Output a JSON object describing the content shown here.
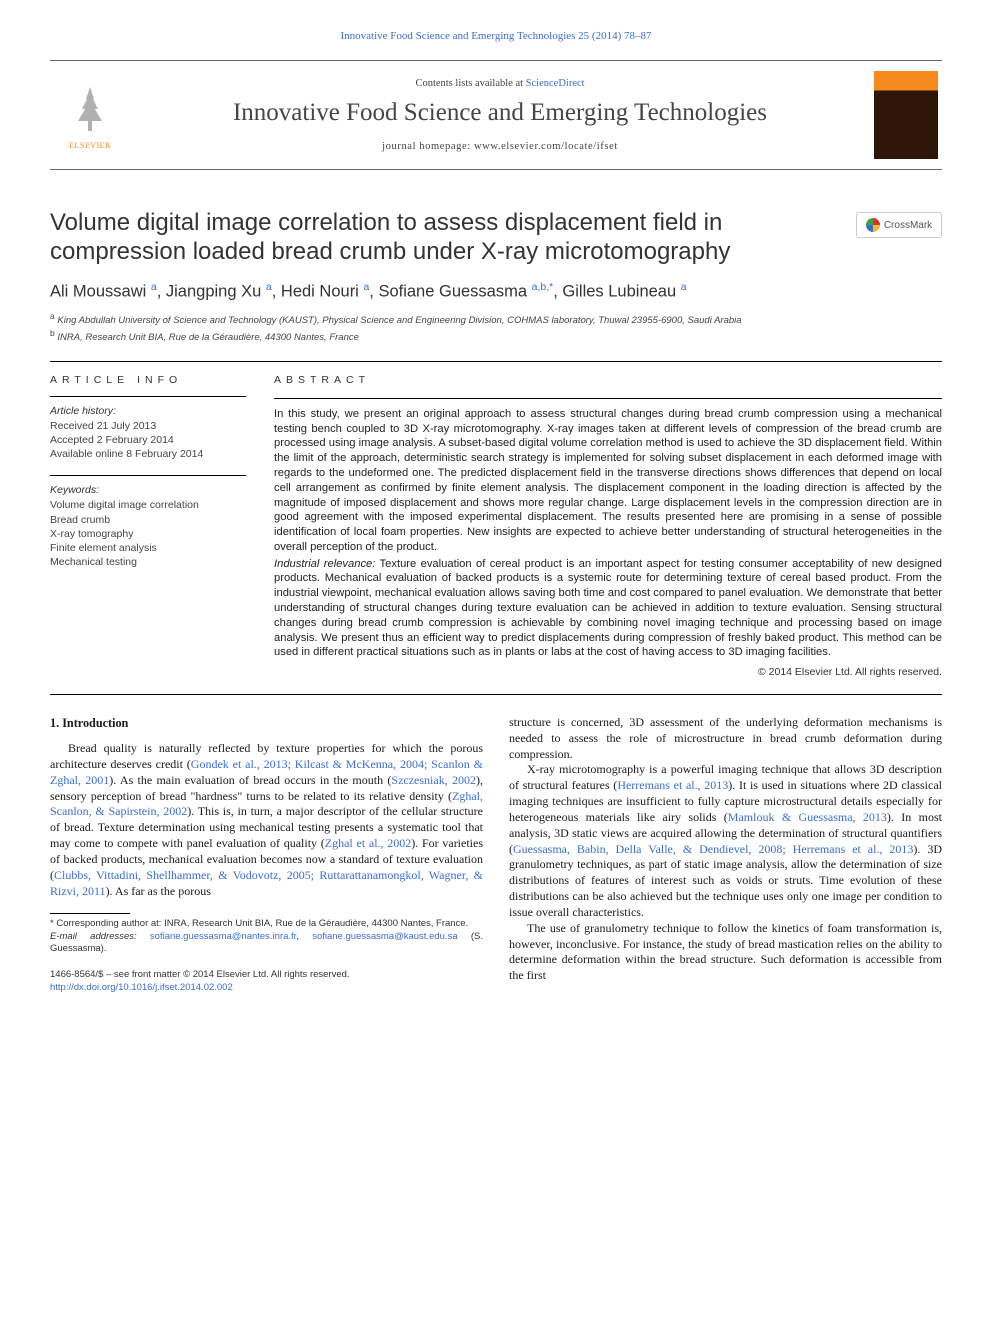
{
  "top_link": {
    "journal_full": "Innovative Food Science and Emerging Technologies 25 (2014) 78–87"
  },
  "header": {
    "contents_prefix": "Contents lists available at ",
    "contents_link": "ScienceDirect",
    "journal_name": "Innovative Food Science and Emerging Technologies",
    "homepage_label": "journal homepage: ",
    "homepage_url": "www.elsevier.com/locate/ifset",
    "elsevier_label": "ELSEVIER"
  },
  "crossmark_label": "CrossMark",
  "title": "Volume digital image correlation to assess displacement field in compression loaded bread crumb under X-ray microtomography",
  "authors_html": "Ali Moussawi <sup>a</sup>, Jiangping Xu <sup>a</sup>, Hedi Nouri <sup>a</sup>, Sofiane Guessasma <sup>a,b,*</sup>, Gilles Lubineau <sup>a</sup>",
  "affiliations": {
    "a": "King Abdullah University of Science and Technology (KAUST), Physical Science and Engineering Division, COHMAS laboratory, Thuwal 23955-6900, Saudi Arabia",
    "b": "INRA, Research Unit BIA, Rue de la Géraudière, 44300 Nantes, France"
  },
  "article_info": {
    "heading": "article info",
    "history_label": "Article history:",
    "received": "Received 21 July 2013",
    "accepted": "Accepted 2 February 2014",
    "online": "Available online 8 February 2014",
    "keywords_label": "Keywords:",
    "keywords": [
      "Volume digital image correlation",
      "Bread crumb",
      "X-ray tomography",
      "Finite element analysis",
      "Mechanical testing"
    ]
  },
  "abstract": {
    "heading": "abstract",
    "p1": "In this study, we present an original approach to assess structural changes during bread crumb compression using a mechanical testing bench coupled to 3D X-ray microtomography. X-ray images taken at different levels of compression of the bread crumb are processed using image analysis. A subset-based digital volume correlation method is used to achieve the 3D displacement field. Within the limit of the approach, deterministic search strategy is implemented for solving subset displacement in each deformed image with regards to the undeformed one. The predicted displacement field in the transverse directions shows differences that depend on local cell arrangement as confirmed by finite element analysis. The displacement component in the loading direction is affected by the magnitude of imposed displacement and shows more regular change. Large displacement levels in the compression direction are in good agreement with the imposed experimental displacement. The results presented here are promising in a sense of possible identification of local foam properties. New insights are expected to achieve better understanding of structural heterogeneities in the overall perception of the product.",
    "p2_lead": "Industrial relevance:",
    "p2": " Texture evaluation of cereal product is an important aspect for testing consumer acceptability of new designed products. Mechanical evaluation of backed products is a systemic route for determining texture of cereal based product. From the industrial viewpoint, mechanical evaluation allows saving both time and cost compared to panel evaluation. We demonstrate that better understanding of structural changes during texture evaluation can be achieved in addition to texture evaluation. Sensing structural changes during bread crumb compression is achievable by combining novel imaging technique and processing based on image analysis. We present thus an efficient way to predict displacements during compression of freshly baked product. This method can be used in different practical situations such as in plants or labs at the cost of having access to 3D imaging facilities.",
    "copyright": "© 2014 Elsevier Ltd. All rights reserved."
  },
  "section1": {
    "heading": "1. Introduction",
    "left_p1a": "Bread quality is naturally reflected by texture properties for which the porous architecture deserves credit (",
    "left_p1_cite1": "Gondek et al., 2013; Kilcast & McKenna, 2004; Scanlon & Zghal, 2001",
    "left_p1b": "). As the main evaluation of bread occurs in the mouth (",
    "left_p1_cite2": "Szczesniak, 2002",
    "left_p1c": "), sensory perception of bread \"hardness\" turns to be related to its relative density (",
    "left_p1_cite3": "Zghal, Scanlon, & Sapirstein, 2002",
    "left_p1d": "). This is, in turn, a major descriptor of the cellular structure of bread. Texture determination using mechanical testing presents a systematic tool that may come to compete with panel evaluation of quality (",
    "left_p1_cite4": "Zghal et al., 2002",
    "left_p1e": "). For varieties of backed products, mechanical evaluation becomes now a standard of texture evaluation (",
    "left_p1_cite5": "Clubbs, Vittadini, Shellhammer, & Vodovotz, 2005; Ruttarattanamongkol, Wagner, & Rizvi, 2011",
    "left_p1f": "). As far as the porous",
    "right_p1": "structure is concerned, 3D assessment of the underlying deformation mechanisms is needed to assess the role of microstructure in bread crumb deformation during compression.",
    "right_p2a": "X-ray microtomography is a powerful imaging technique that allows 3D description of structural features (",
    "right_p2_cite1": "Herremans et al., 2013",
    "right_p2b": "). It is used in situations where 2D classical imaging techniques are insufficient to fully capture microstructural details especially for heterogeneous materials like airy solids (",
    "right_p2_cite2": "Mamlouk & Guessasma, 2013",
    "right_p2c": "). In most analysis, 3D static views are acquired allowing the determination of structural quantifiers (",
    "right_p2_cite3": "Guessasma, Babin, Della Valle, & Dendievel, 2008; Herremans et al., 2013",
    "right_p2d": "). 3D granulometry techniques, as part of static image analysis, allow the determination of size distributions of features of interest such as voids or struts. Time evolution of these distributions can be also achieved but the technique uses only one image per condition to issue overall characteristics.",
    "right_p3": "The use of granulometry technique to follow the kinetics of foam transformation is, however, inconclusive. For instance, the study of bread mastication relies on the ability to determine deformation within the bread structure. Such deformation is accessible from the first"
  },
  "footnote": {
    "corr": "* Corresponding author at: INRA, Research Unit BIA, Rue de la Géraudière, 44300 Nantes, France.",
    "email_label": "E-mail addresses: ",
    "email1": "sofiane.guessasma@nantes.inra.fr",
    "email_sep": ", ",
    "email2": "sofiane.guessasma@kaust.edu.sa",
    "email_tail": " (S. Guessasma)."
  },
  "bottom": {
    "line1": "1466-8564/$ – see front matter © 2014 Elsevier Ltd. All rights reserved.",
    "doi": "http://dx.doi.org/10.1016/j.ifset.2014.02.002"
  },
  "colors": {
    "link": "#3b6cd4",
    "text": "#1a1a1a",
    "elsevier_orange": "#f78a1e"
  }
}
